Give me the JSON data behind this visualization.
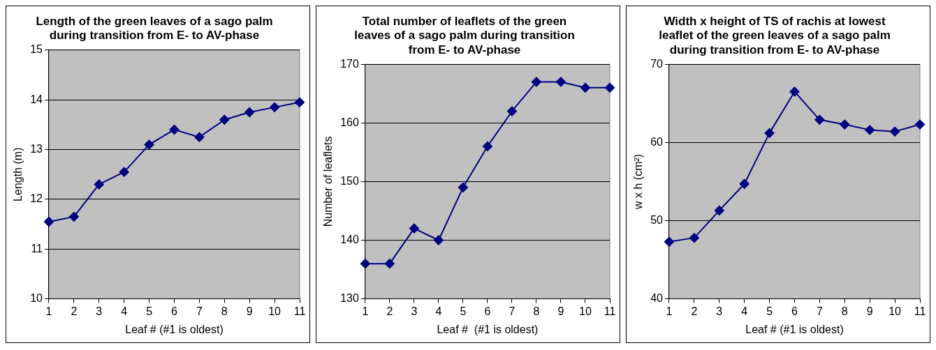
{
  "chart_data": [
    {
      "type": "line",
      "title": "Length of the green leaves of a sago palm during transition from E- to AV-phase",
      "xlabel": "Leaf # (#1 is oldest)",
      "ylabel": "Length (m)",
      "categories": [
        "1",
        "2",
        "3",
        "4",
        "5",
        "6",
        "7",
        "8",
        "9",
        "10",
        "11"
      ],
      "series": [
        {
          "color": "#000080",
          "values": [
            11.55,
            11.65,
            12.3,
            12.55,
            13.1,
            13.4,
            13.25,
            13.6,
            13.75,
            13.85,
            13.95
          ]
        }
      ],
      "ylim": [
        10,
        15
      ],
      "yticks": [
        10,
        11,
        12,
        13,
        14,
        15
      ],
      "grid": "y",
      "legend": false,
      "marker": "diamond",
      "line_style": "solid"
    },
    {
      "type": "line",
      "title": "Total number of leaflets of the green leaves of a sago palm during transition from E- to AV-phase",
      "xlabel": "Leaf #  (#1 is oldest)",
      "ylabel": "Number of leaflets",
      "categories": [
        "1",
        "2",
        "3",
        "4",
        "5",
        "6",
        "7",
        "8",
        "9",
        "10",
        "11"
      ],
      "series": [
        {
          "color": "#000080",
          "values": [
            136,
            136,
            142,
            140,
            149,
            156,
            162,
            167,
            167,
            166,
            166
          ]
        }
      ],
      "ylim": [
        130,
        170
      ],
      "yticks": [
        130,
        140,
        150,
        160,
        170
      ],
      "grid": "y",
      "legend": false,
      "marker": "diamond",
      "line_style": "solid"
    },
    {
      "type": "line",
      "title": "Width x height of TS of rachis at lowest leaflet of the green leaves of a sago palm during transition from E- to AV-phase",
      "xlabel": "Leaf # (#1 is oldest)",
      "ylabel": "w x h (cm²)",
      "categories": [
        "1",
        "2",
        "3",
        "4",
        "5",
        "6",
        "7",
        "8",
        "9",
        "10",
        "11"
      ],
      "series": [
        {
          "color": "#000080",
          "values": [
            47.3,
            47.8,
            51.3,
            54.7,
            61.2,
            66.5,
            62.9,
            62.3,
            61.6,
            61.4,
            62.3
          ]
        }
      ],
      "ylim": [
        40,
        70
      ],
      "yticks": [
        40,
        50,
        60,
        70
      ],
      "grid": "y",
      "legend": false,
      "marker": "diamond",
      "line_style": "solid"
    }
  ]
}
